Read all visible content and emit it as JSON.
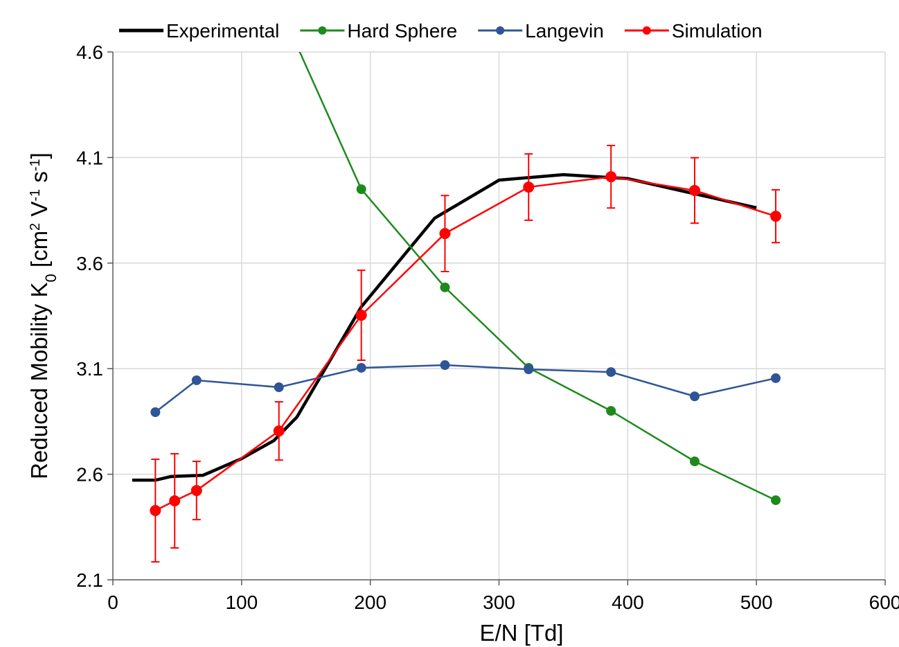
{
  "chart_data": {
    "type": "line",
    "x_label": "E/N [Td]",
    "y_label_parts": [
      {
        "text": "Reduced Mobility K",
        "shift": "normal"
      },
      {
        "text": "0",
        "shift": "sub"
      },
      {
        "text": " [cm",
        "shift": "normal"
      },
      {
        "text": "2",
        "shift": "super"
      },
      {
        "text": " V",
        "shift": "normal"
      },
      {
        "text": "-1",
        "shift": "super"
      },
      {
        "text": " s",
        "shift": "normal"
      },
      {
        "text": "-1",
        "shift": "super"
      },
      {
        "text": "]",
        "shift": "normal"
      }
    ],
    "xlim": [
      0,
      600
    ],
    "xticks": [
      0,
      100,
      200,
      300,
      400,
      500,
      600
    ],
    "ylim": [
      2.1,
      4.6
    ],
    "yticks": [
      2.1,
      2.6,
      3.1,
      3.6,
      4.1,
      4.6
    ],
    "grid": true,
    "legend": "top",
    "series": [
      {
        "name": "Experimental",
        "color": "#000000",
        "markers": false,
        "x": [
          15,
          33,
          45,
          70,
          100,
          125,
          143,
          193,
          250,
          300,
          350,
          400,
          500
        ],
        "values": [
          2.572,
          2.572,
          2.589,
          2.595,
          2.674,
          2.759,
          2.871,
          3.393,
          3.813,
          3.993,
          4.019,
          4.0,
          3.862
        ]
      },
      {
        "name": "Hard Sphere",
        "color": "#1e8a1e",
        "markers": true,
        "x": [
          129,
          193,
          258,
          323,
          387,
          452,
          515
        ],
        "values": [
          4.82,
          3.95,
          3.485,
          3.104,
          2.9,
          2.661,
          2.477
        ]
      },
      {
        "name": "Langevin",
        "color": "#2f5597",
        "markers": true,
        "x": [
          33,
          65,
          129,
          193,
          258,
          323,
          387,
          452,
          515
        ],
        "values": [
          2.894,
          3.045,
          3.012,
          3.104,
          3.117,
          3.097,
          3.084,
          2.969,
          3.055
        ]
      },
      {
        "name": "Simulation",
        "color": "#ff0000",
        "markers": true,
        "x": [
          33,
          48,
          65,
          129,
          193,
          258,
          323,
          387,
          452,
          515
        ],
        "values": [
          2.428,
          2.474,
          2.523,
          2.805,
          3.353,
          3.74,
          3.96,
          4.009,
          3.944,
          3.822
        ],
        "errors": [
          0.243,
          0.223,
          0.138,
          0.138,
          0.213,
          0.18,
          0.157,
          0.148,
          0.155,
          0.125
        ]
      }
    ]
  }
}
